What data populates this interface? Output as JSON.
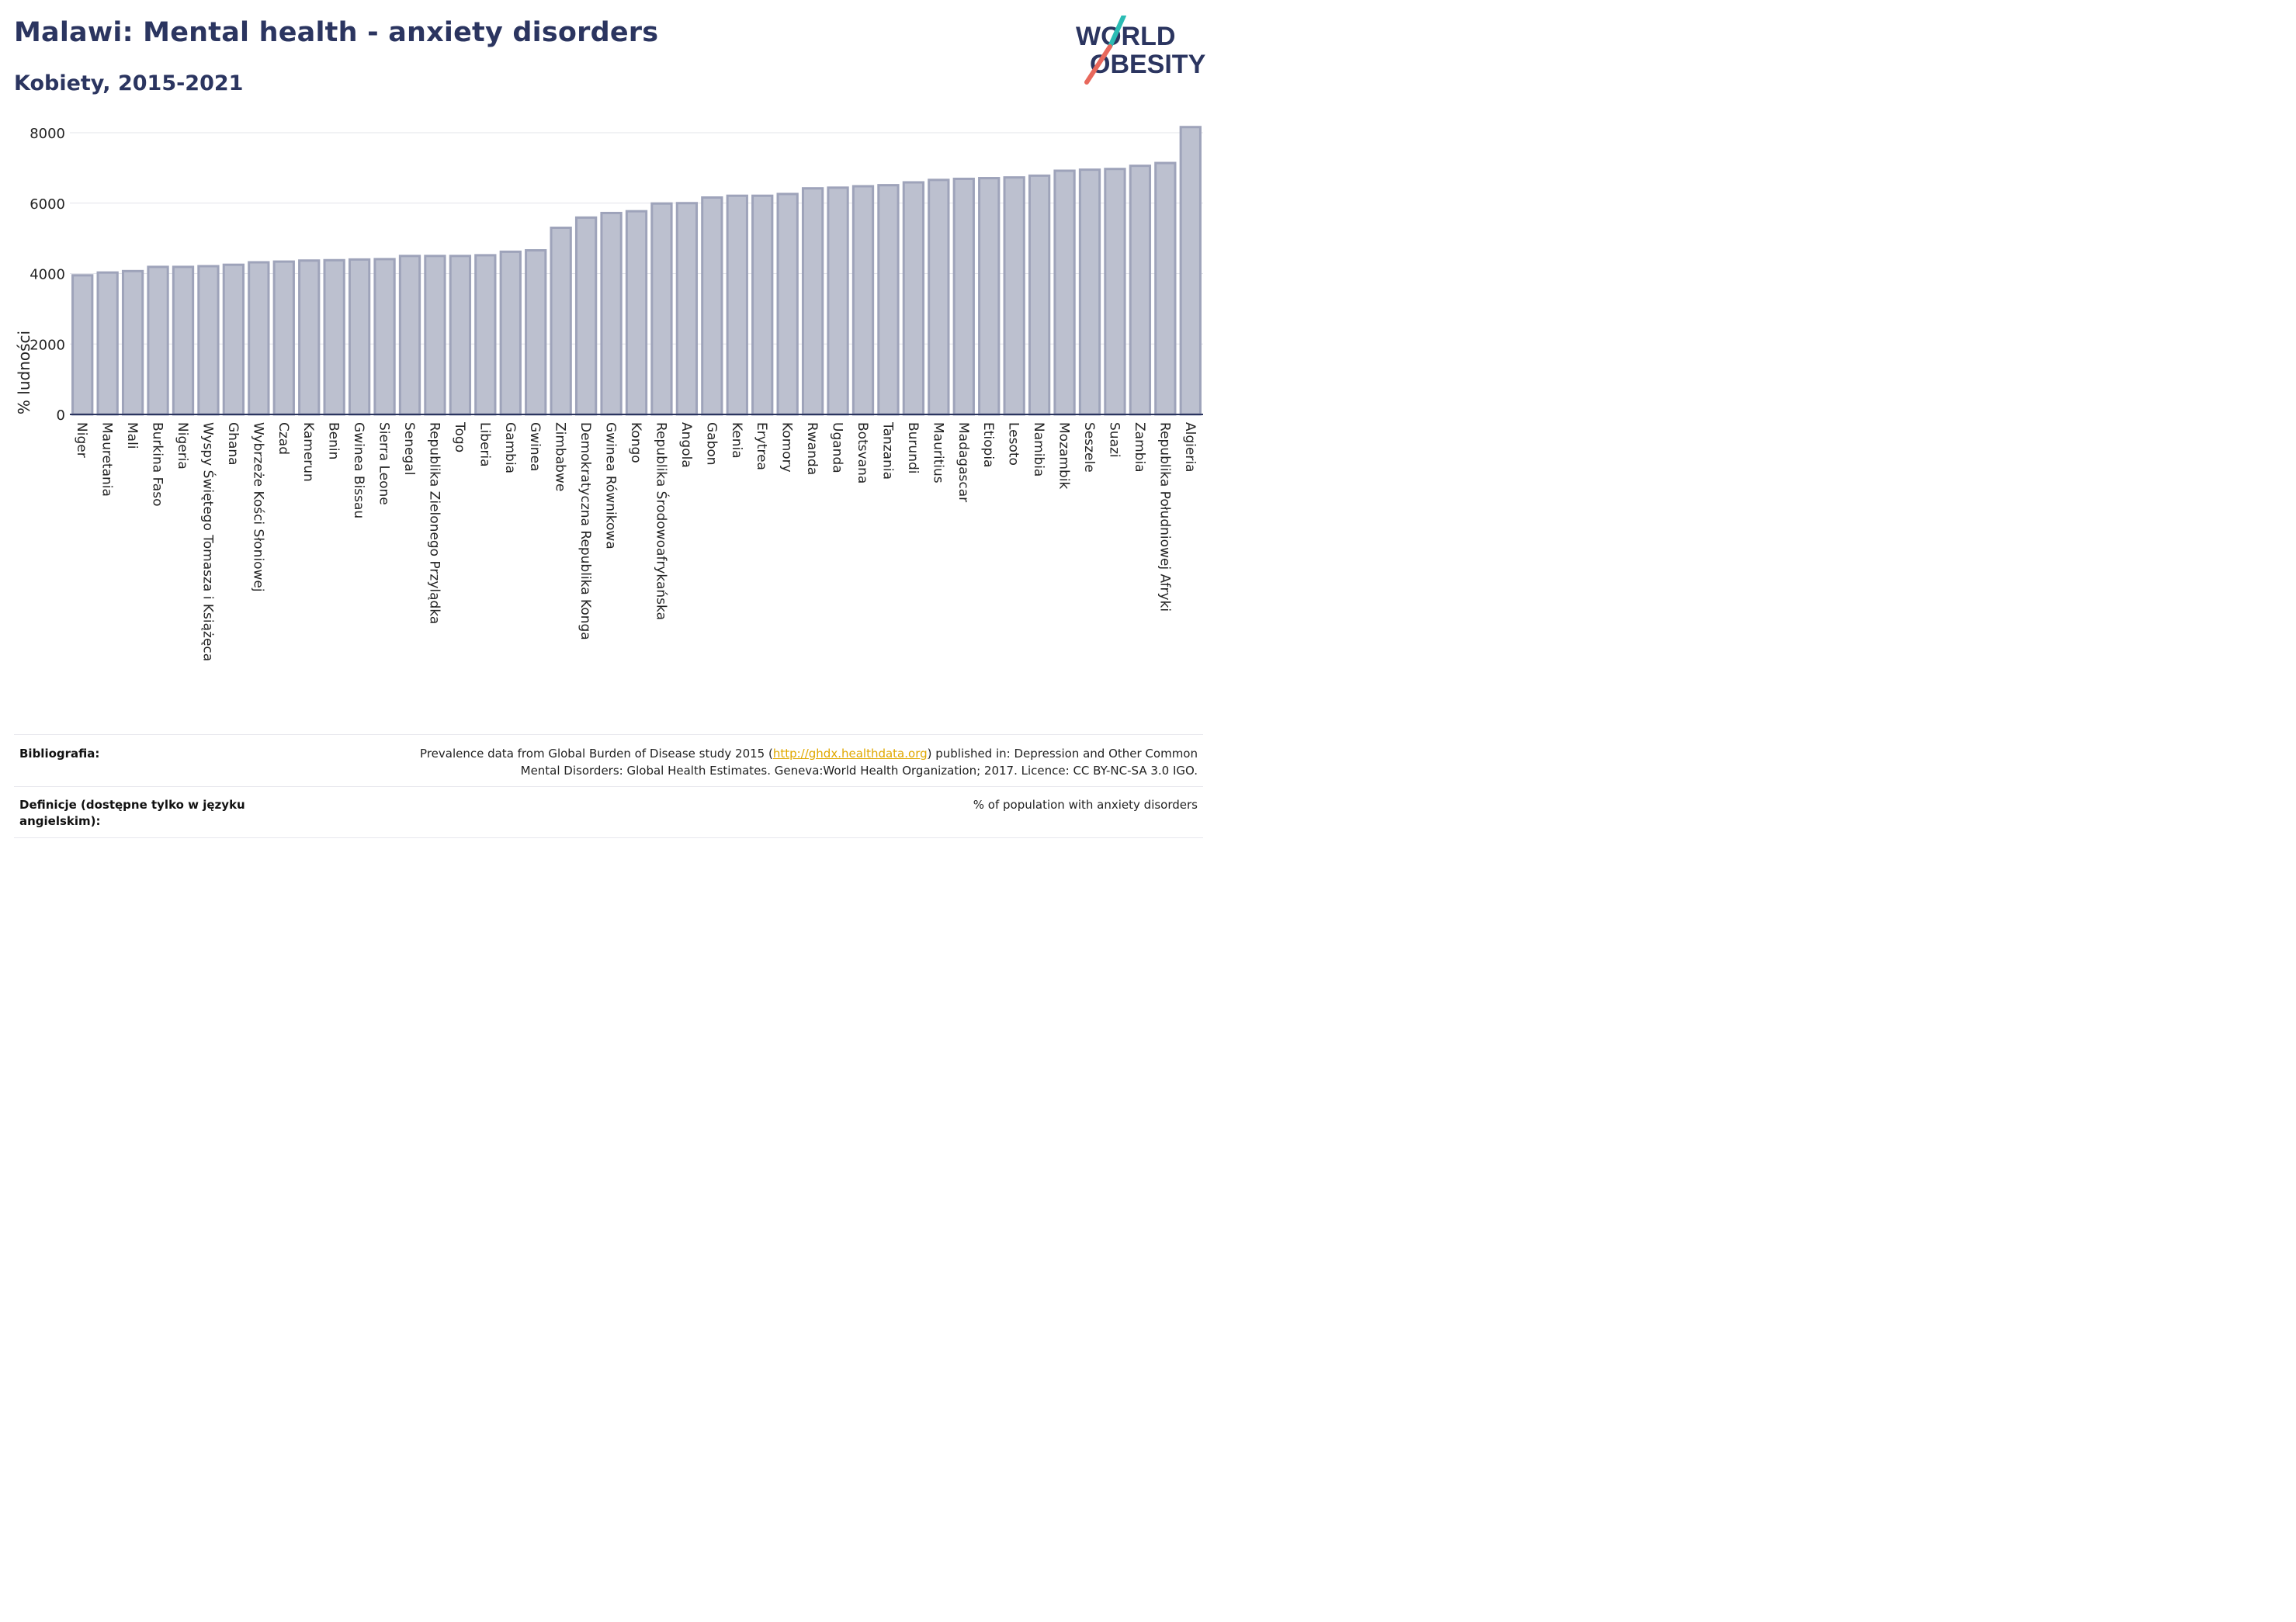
{
  "header": {
    "title": "Malawi: Mental health - anxiety disorders",
    "subtitle": "Kobiety, 2015-2021"
  },
  "logo": {
    "line1": "WORLD",
    "line2": "OBESITY"
  },
  "colors": {
    "bar_fill": "#bcc0cf",
    "bar_stroke": "#9ea3ba",
    "title": "#2b3560",
    "logo_teal": "#2bbcb4",
    "logo_red": "#e8685c",
    "link": "#e0a800"
  },
  "chart_data": {
    "type": "bar",
    "ylabel": "% ludności",
    "ylim": [
      0,
      8400
    ],
    "yticks": [
      0,
      2000,
      4000,
      6000,
      8000
    ],
    "grid": true,
    "categories": [
      "Niger",
      "Mauretania",
      "Mali",
      "Burkina Faso",
      "Nigeria",
      "Wyspy Świętego Tomasza i Książęca",
      "Ghana",
      "Wybrzeże Kości Słoniowej",
      "Czad",
      "Kamerun",
      "Benin",
      "Gwinea Bissau",
      "Sierra Leone",
      "Senegal",
      "Republika Zielonego Przylądka",
      "Togo",
      "Liberia",
      "Gambia",
      "Gwinea",
      "Zimbabwe",
      "Demokratyczna Republika Konga",
      "Gwinea Równikowa",
      "Kongo",
      "Republika Środowoafrykańska",
      "Angola",
      "Gabon",
      "Kenia",
      "Erytrea",
      "Komory",
      "Rwanda",
      "Uganda",
      "Botsvana",
      "Tanzania",
      "Burundi",
      "Mauritius",
      "Madagascar",
      "Etiopia",
      "Lesoto",
      "Namibia",
      "Mozambik",
      "Seszele",
      "Suazi",
      "Zambia",
      "Republika Południowej Afryki",
      "Algieria"
    ],
    "values": [
      3950,
      4030,
      4070,
      4190,
      4190,
      4210,
      4250,
      4320,
      4340,
      4370,
      4380,
      4400,
      4410,
      4500,
      4500,
      4500,
      4520,
      4620,
      4660,
      5300,
      5590,
      5720,
      5770,
      5990,
      6000,
      6160,
      6210,
      6210,
      6260,
      6420,
      6440,
      6480,
      6510,
      6590,
      6660,
      6690,
      6710,
      6730,
      6780,
      6920,
      6950,
      6970,
      7060,
      7140,
      8160
    ]
  },
  "footer": {
    "bibliography_label": "Bibliografia:",
    "bibliography_pre": "Prevalence data from Global Burden of Disease study 2015 (",
    "bibliography_link": "http://ghdx.healthdata.org",
    "bibliography_post": ") published in: Depression and Other Common",
    "bibliography_line2": "Mental Disorders: Global Health Estimates. Geneva:World Health Organization; 2017. Licence: CC BY-NC-SA 3.0 IGO.",
    "definitions_label_1": "Definicje (dostępne tylko w języku",
    "definitions_label_2": "angielskim):",
    "definitions_text": "% of population with anxiety disorders"
  }
}
